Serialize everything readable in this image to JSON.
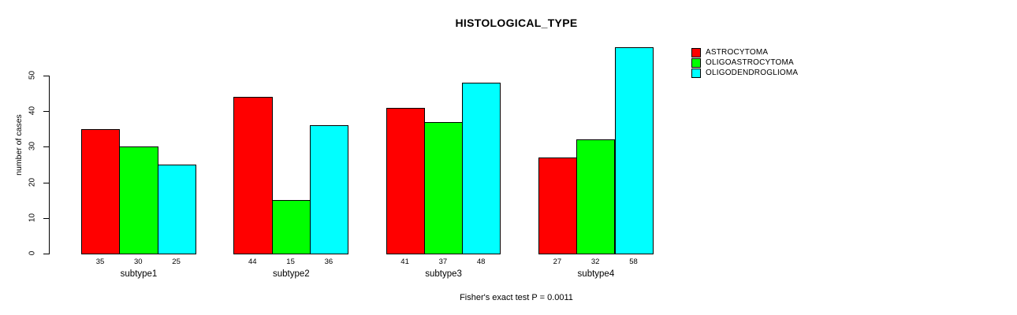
{
  "title": "HISTOLOGICAL_TYPE",
  "y_axis_label": "number of cases",
  "footer": {
    "text": "Fisher's exact test P = 0.0011"
  },
  "colors": {
    "background": "#FFFFFF",
    "text": "#000000",
    "axis": "#000000",
    "astrocytoma": "#FF0000",
    "oligoastrocytoma": "#00FF00",
    "oligodendroglioma": "#00FFFF"
  },
  "chart_data": {
    "type": "bar",
    "title": "HISTOLOGICAL_TYPE",
    "categories": [
      "subtype1",
      "subtype2",
      "subtype3",
      "subtype4"
    ],
    "series": [
      {
        "name": "ASTROCYTOMA",
        "color": "#FF0000",
        "values": [
          35,
          44,
          41,
          27
        ]
      },
      {
        "name": "OLIGOASTROCYTOMA",
        "color": "#00FF00",
        "values": [
          30,
          15,
          37,
          32
        ]
      },
      {
        "name": "OLIGODENDROGLIOMA",
        "color": "#00FFFF",
        "values": [
          25,
          36,
          48,
          58
        ]
      }
    ],
    "bar_value_labels": [
      [
        "35",
        "30",
        "25"
      ],
      [
        "44",
        "15",
        "36"
      ],
      [
        "41",
        "37",
        "48"
      ],
      [
        "27",
        "32",
        "58"
      ]
    ],
    "xlabel": "",
    "ylabel": "number of cases",
    "ylim": [
      0,
      50
    ],
    "yticks": [
      0,
      10,
      20,
      30,
      40,
      50
    ],
    "grid": false,
    "legend_position": "top-right",
    "annotation": "Fisher's exact test P = 0.0011"
  }
}
